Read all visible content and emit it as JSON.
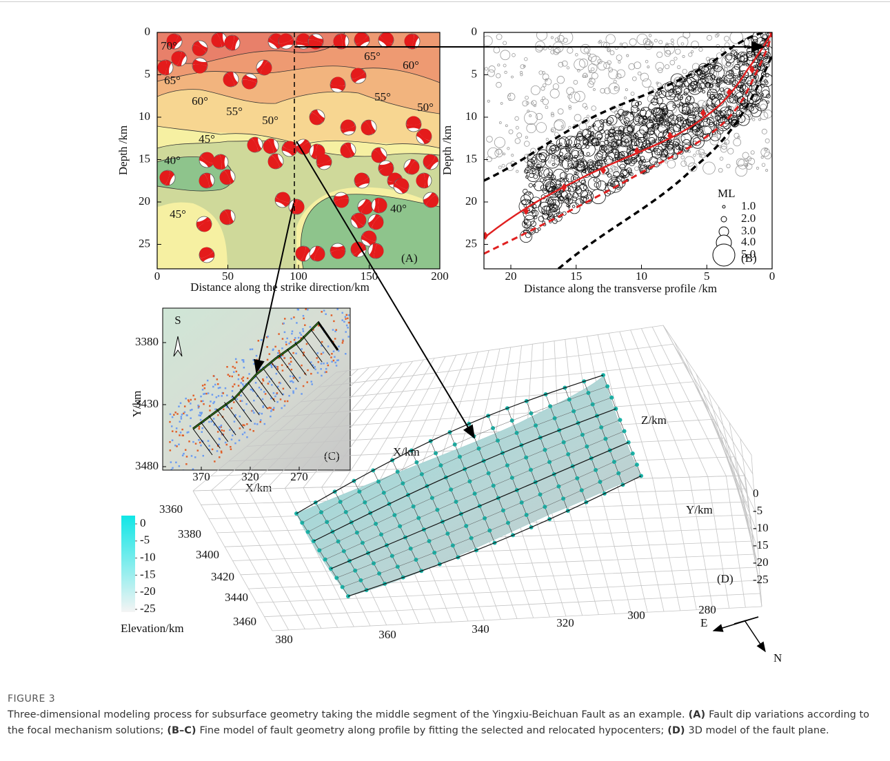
{
  "panel_a": {
    "label": "(A)",
    "y_label": "Depth /km",
    "x_label": "Distance along the strike direction/km",
    "xticks": [
      0,
      50,
      100,
      150,
      200
    ],
    "yticks": [
      0,
      5,
      10,
      15,
      20,
      25
    ],
    "contour_labels": [
      "70°",
      "65°",
      "60°",
      "55°",
      "50°",
      "45°",
      "40°",
      "45°",
      "65°",
      "60°",
      "55°",
      "50°",
      "40°"
    ]
  },
  "panel_b": {
    "label": "(B)",
    "y_label": "Depth /km",
    "x_label": "Distance along the transverse profile /km",
    "xticks": [
      20,
      15,
      10,
      5,
      0
    ],
    "yticks": [
      0,
      5,
      10,
      15,
      20,
      25
    ],
    "legend_title": "ML",
    "legend_sizes": [
      "1.0",
      "2.0",
      "3.0",
      "4.0",
      "5.0"
    ]
  },
  "panel_c": {
    "label": "(C)",
    "north_label": "S",
    "y_label": "Y/km",
    "x_label": "X/km",
    "yticks": [
      3380,
      3430,
      3480
    ],
    "xticks": [
      370,
      320,
      270
    ]
  },
  "panel_d": {
    "label": "(D)",
    "x_label": "X/km",
    "y_label": "Y/km",
    "z_label": "Z/km",
    "yticks": [
      3360,
      3380,
      3400,
      3420,
      3440,
      3460
    ],
    "xticks": [
      380,
      360,
      340,
      320,
      300,
      280
    ],
    "zticks": [
      0,
      -5,
      -10,
      -15,
      -20,
      -25
    ],
    "compass": [
      "E",
      "N"
    ],
    "colorbar_ticks": [
      0,
      -5,
      -10,
      -15,
      -20,
      -25
    ],
    "colorbar_label": "Elevation/km"
  },
  "caption": {
    "figure_label": "FIGURE 3",
    "intro": "Three-dimensional modeling process for subsurface geometry taking the middle segment of the Yingxiu-Beichuan Fault as an example.",
    "parts": [
      {
        "tag": "(A)",
        "text": "Fault dip variations according to the focal mechanism solutions;"
      },
      {
        "tag": "(B–C)",
        "text": "Fine model of fault geometry along profile by fitting the selected and relocated hypocenters;"
      },
      {
        "tag": "(D)",
        "text": "3D model of the fault plane."
      }
    ]
  }
}
